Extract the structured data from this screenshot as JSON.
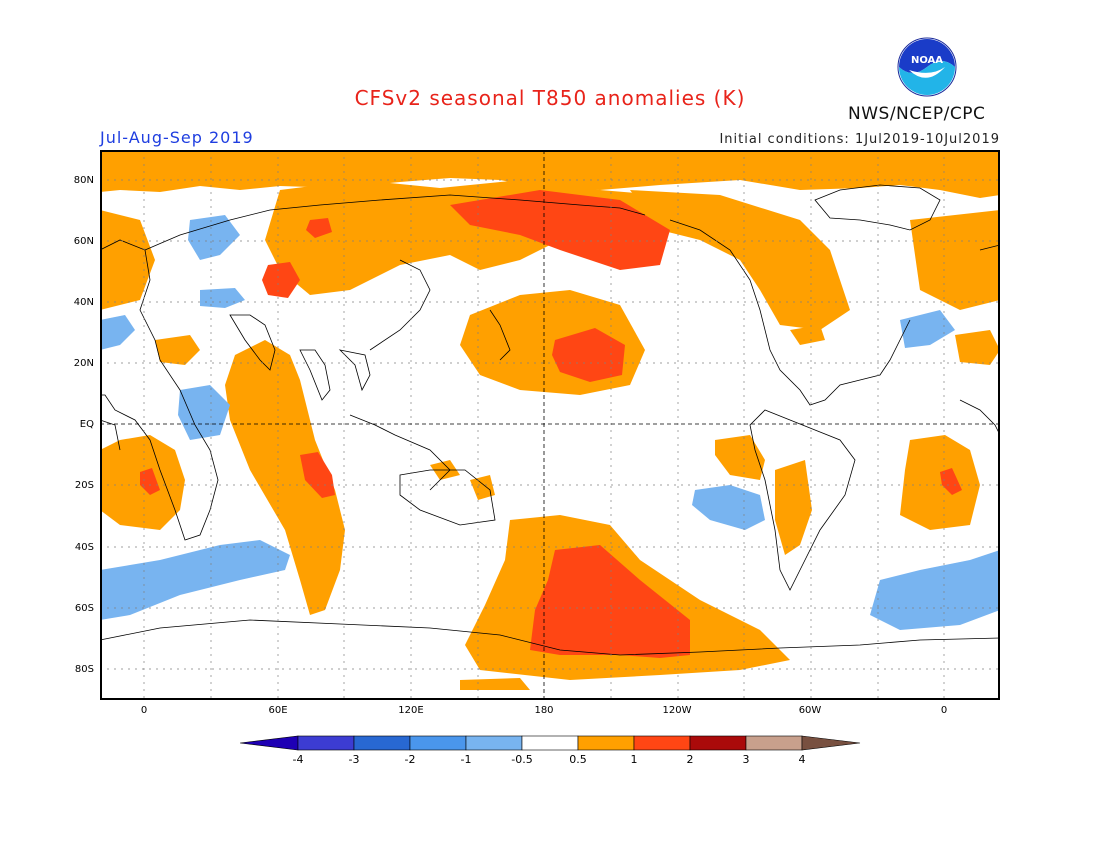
{
  "title": "CFSv2 seasonal T850 anomalies (K)",
  "season": "Jul-Aug-Sep 2019",
  "initial_conditions": "Initial conditions: 1Jul2019-10Jul2019",
  "organization": "NWS/NCEP/CPC",
  "logo_text": "NOAA",
  "lat_labels": [
    "80N",
    "60N",
    "40N",
    "20N",
    "EQ",
    "20S",
    "40S",
    "60S",
    "80S"
  ],
  "lon_labels": [
    "0",
    "60E",
    "120E",
    "180",
    "120W",
    "60W",
    "0"
  ],
  "colorbar": {
    "ticks": [
      "-4",
      "-3",
      "-2",
      "-1",
      "-0.5",
      "0.5",
      "1",
      "2",
      "3",
      "4"
    ],
    "colors": [
      "#1e00b4",
      "#3c3cd2",
      "#2868d2",
      "#4a96ec",
      "#78b4f0",
      "#ffffff",
      "#ffa000",
      "#ff4614",
      "#aa0a0a",
      "#c8a08c",
      "#785040"
    ]
  },
  "colors": {
    "title": "#e8231a",
    "season": "#1f3ee0",
    "positive_0_5_1": "#ffa000",
    "positive_1_2": "#ff4614",
    "negative_0_5_1": "#78b4f0"
  }
}
